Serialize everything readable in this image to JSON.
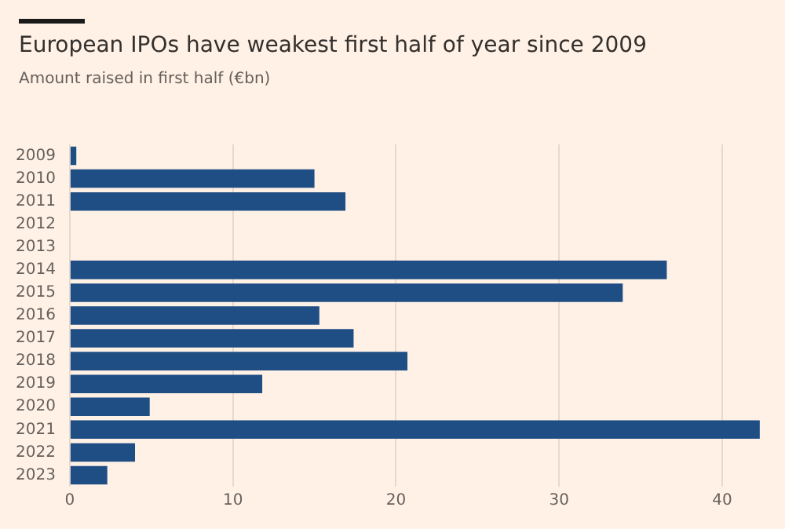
{
  "chart_data": {
    "type": "bar",
    "orientation": "horizontal",
    "title": "European IPOs have weakest first half of year since 2009",
    "subtitle": "Amount raised in first half (€bn)",
    "categories": [
      "2009",
      "2010",
      "2011",
      "2012",
      "2013",
      "2014",
      "2015",
      "2016",
      "2017",
      "2018",
      "2019",
      "2020",
      "2021",
      "2022",
      "2023"
    ],
    "values": [
      0.4,
      15.0,
      16.9,
      null,
      null,
      36.6,
      33.9,
      15.3,
      17.4,
      20.7,
      11.8,
      4.9,
      42.3,
      4.0,
      2.3
    ],
    "color": "#1f4e85",
    "xlim": [
      0,
      42.5
    ],
    "xticks": [
      0,
      10,
      20,
      30,
      40
    ],
    "grid": "x",
    "legend": false
  }
}
